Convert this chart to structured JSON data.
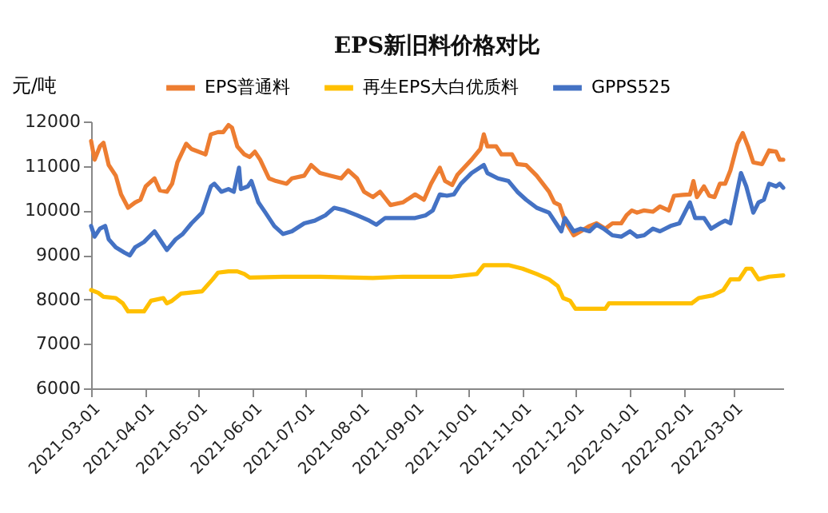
{
  "chart_data": {
    "type": "line",
    "title": "EPS新旧料价格对比",
    "ylabel": "元/吨",
    "legend": "top",
    "ylim": [
      6000,
      12000
    ],
    "yticks": [
      6000,
      7000,
      8000,
      9000,
      10000,
      11000,
      12000
    ],
    "xlim": [
      "2021-03-01",
      "2022-03-29"
    ],
    "xticks": [
      "2021-03-01",
      "2021-04-01",
      "2021-05-01",
      "2021-06-01",
      "2021-07-01",
      "2021-08-01",
      "2021-09-01",
      "2021-10-01",
      "2021-11-01",
      "2021-12-01",
      "2022-01-01",
      "2022-02-01",
      "2022-03-01"
    ],
    "grid": false,
    "series": [
      {
        "name": "EPS普通料",
        "color": "#ed7d31",
        "x": [
          "2021-03-01",
          "2021-03-03",
          "2021-03-06",
          "2021-03-08",
          "2021-03-11",
          "2021-03-15",
          "2021-03-18",
          "2021-03-22",
          "2021-03-26",
          "2021-03-29",
          "2021-04-01",
          "2021-04-06",
          "2021-04-09",
          "2021-04-13",
          "2021-04-16",
          "2021-04-19",
          "2021-04-24",
          "2021-04-27",
          "2021-05-05",
          "2021-05-08",
          "2021-05-12",
          "2021-05-15",
          "2021-05-18",
          "2021-05-20",
          "2021-05-23",
          "2021-05-27",
          "2021-05-30",
          "2021-06-02",
          "2021-06-05",
          "2021-06-10",
          "2021-06-14",
          "2021-06-20",
          "2021-06-23",
          "2021-06-30",
          "2021-07-04",
          "2021-07-09",
          "2021-07-15",
          "2021-07-21",
          "2021-07-25",
          "2021-07-30",
          "2021-08-03",
          "2021-08-08",
          "2021-08-12",
          "2021-08-18",
          "2021-08-25",
          "2021-09-01",
          "2021-09-06",
          "2021-09-10",
          "2021-09-15",
          "2021-09-18",
          "2021-09-22",
          "2021-09-25",
          "2021-10-03",
          "2021-10-08",
          "2021-10-10",
          "2021-10-12",
          "2021-10-17",
          "2021-10-20",
          "2021-10-26",
          "2021-10-29",
          "2021-11-03",
          "2021-11-09",
          "2021-11-16",
          "2021-11-19",
          "2021-11-22",
          "2021-11-25",
          "2021-11-30",
          "2021-12-04",
          "2021-12-09",
          "2021-12-13",
          "2021-12-18",
          "2021-12-22",
          "2021-12-27",
          "2021-12-30",
          "2022-01-02",
          "2022-01-05",
          "2022-01-09",
          "2022-01-14",
          "2022-01-18",
          "2022-01-23",
          "2022-01-26",
          "2022-01-31",
          "2022-02-04",
          "2022-02-06",
          "2022-02-08",
          "2022-02-12",
          "2022-02-15",
          "2022-02-18",
          "2022-02-21",
          "2022-02-24",
          "2022-02-27",
          "2022-03-03",
          "2022-03-06",
          "2022-03-09",
          "2022-03-12",
          "2022-03-17",
          "2022-03-21",
          "2022-03-25",
          "2022-03-27",
          "2022-03-29"
        ],
        "values": [
          11560,
          11140,
          11440,
          11520,
          11020,
          10780,
          10360,
          10060,
          10180,
          10240,
          10540,
          10720,
          10450,
          10420,
          10600,
          11080,
          11500,
          11380,
          11260,
          11710,
          11760,
          11760,
          11920,
          11860,
          11440,
          11260,
          11200,
          11320,
          11140,
          10720,
          10660,
          10600,
          10720,
          10780,
          11020,
          10840,
          10780,
          10720,
          10900,
          10720,
          10420,
          10300,
          10420,
          10120,
          10180,
          10360,
          10240,
          10600,
          10960,
          10660,
          10570,
          10800,
          11140,
          11380,
          11710,
          11440,
          11440,
          11260,
          11260,
          11040,
          11020,
          10780,
          10420,
          10180,
          10120,
          9770,
          9440,
          9530,
          9650,
          9710,
          9590,
          9710,
          9710,
          9890,
          10000,
          9950,
          10000,
          9970,
          10090,
          10000,
          10330,
          10350,
          10360,
          10660,
          10300,
          10540,
          10330,
          10300,
          10600,
          10600,
          10900,
          11500,
          11740,
          11440,
          11080,
          11040,
          11350,
          11320,
          11140,
          11140
        ]
      },
      {
        "name": "再生EPS大白优质料",
        "color": "#ffc000",
        "x": [
          "2021-03-01",
          "2021-03-05",
          "2021-03-08",
          "2021-03-15",
          "2021-03-19",
          "2021-03-22",
          "2021-03-31",
          "2021-04-04",
          "2021-04-11",
          "2021-04-13",
          "2021-04-16",
          "2021-04-21",
          "2021-05-03",
          "2021-05-09",
          "2021-05-12",
          "2021-05-18",
          "2021-05-23",
          "2021-05-27",
          "2021-05-30",
          "2021-06-18",
          "2021-07-09",
          "2021-08-08",
          "2021-08-25",
          "2021-09-22",
          "2021-10-06",
          "2021-10-10",
          "2021-10-24",
          "2021-11-01",
          "2021-11-09",
          "2021-11-16",
          "2021-11-21",
          "2021-11-24",
          "2021-11-28",
          "2021-12-01",
          "2021-12-18",
          "2021-12-20",
          "2022-02-05",
          "2022-02-09",
          "2022-02-17",
          "2022-02-23",
          "2022-02-27",
          "2022-03-04",
          "2022-03-08",
          "2022-03-11",
          "2022-03-15",
          "2022-03-21",
          "2022-03-29"
        ],
        "values": [
          8210,
          8150,
          8060,
          8030,
          7910,
          7730,
          7730,
          7970,
          8030,
          7910,
          7970,
          8130,
          8180,
          8450,
          8600,
          8630,
          8630,
          8570,
          8490,
          8510,
          8510,
          8480,
          8510,
          8510,
          8570,
          8770,
          8770,
          8690,
          8570,
          8450,
          8300,
          8030,
          7970,
          7790,
          7790,
          7910,
          7910,
          8030,
          8090,
          8210,
          8450,
          8450,
          8690,
          8690,
          8450,
          8510,
          8540
        ]
      },
      {
        "name": "GPPS525",
        "color": "#4472c4",
        "x": [
          "2021-03-01",
          "2021-03-03",
          "2021-03-06",
          "2021-03-09",
          "2021-03-11",
          "2021-03-15",
          "2021-03-20",
          "2021-03-23",
          "2021-03-26",
          "2021-03-31",
          "2021-04-06",
          "2021-04-09",
          "2021-04-13",
          "2021-04-18",
          "2021-04-22",
          "2021-04-27",
          "2021-05-03",
          "2021-05-08",
          "2021-05-10",
          "2021-05-14",
          "2021-05-18",
          "2021-05-21",
          "2021-05-24",
          "2021-05-25",
          "2021-05-29",
          "2021-05-31",
          "2021-06-04",
          "2021-06-08",
          "2021-06-13",
          "2021-06-18",
          "2021-06-23",
          "2021-06-30",
          "2021-07-06",
          "2021-07-12",
          "2021-07-17",
          "2021-07-23",
          "2021-07-30",
          "2021-08-06",
          "2021-08-10",
          "2021-08-15",
          "2021-08-27",
          "2021-09-01",
          "2021-09-07",
          "2021-09-11",
          "2021-09-15",
          "2021-09-19",
          "2021-09-23",
          "2021-09-27",
          "2021-10-03",
          "2021-10-10",
          "2021-10-12",
          "2021-10-18",
          "2021-10-24",
          "2021-10-29",
          "2021-11-03",
          "2021-11-09",
          "2021-11-16",
          "2021-11-20",
          "2021-11-23",
          "2021-11-25",
          "2021-11-30",
          "2021-12-04",
          "2021-12-09",
          "2021-12-13",
          "2021-12-17",
          "2021-12-22",
          "2021-12-27",
          "2022-01-01",
          "2022-01-05",
          "2022-01-09",
          "2022-01-14",
          "2022-01-18",
          "2022-01-24",
          "2022-01-29",
          "2022-02-04",
          "2022-02-07",
          "2022-02-12",
          "2022-02-16",
          "2022-02-21",
          "2022-02-24",
          "2022-02-27",
          "2022-03-05",
          "2022-03-08",
          "2022-03-12",
          "2022-03-15",
          "2022-03-18",
          "2022-03-21",
          "2022-03-25",
          "2022-03-27",
          "2022-03-29"
        ],
        "values": [
          9650,
          9410,
          9590,
          9650,
          9350,
          9170,
          9050,
          8990,
          9170,
          9290,
          9530,
          9350,
          9110,
          9350,
          9470,
          9710,
          9950,
          10540,
          10600,
          10420,
          10480,
          10420,
          10960,
          10480,
          10540,
          10660,
          10180,
          9950,
          9650,
          9470,
          9530,
          9710,
          9770,
          9890,
          10060,
          10000,
          9890,
          9770,
          9680,
          9830,
          9830,
          9830,
          9890,
          10000,
          10360,
          10330,
          10360,
          10600,
          10840,
          11020,
          10840,
          10720,
          10660,
          10420,
          10240,
          10060,
          9950,
          9710,
          9530,
          9830,
          9530,
          9590,
          9530,
          9680,
          9590,
          9440,
          9410,
          9530,
          9410,
          9440,
          9590,
          9530,
          9650,
          9710,
          10180,
          9830,
          9830,
          9590,
          9710,
          9770,
          9710,
          10840,
          10540,
          9950,
          10180,
          10240,
          10600,
          10540,
          10600,
          10510
        ]
      }
    ]
  }
}
